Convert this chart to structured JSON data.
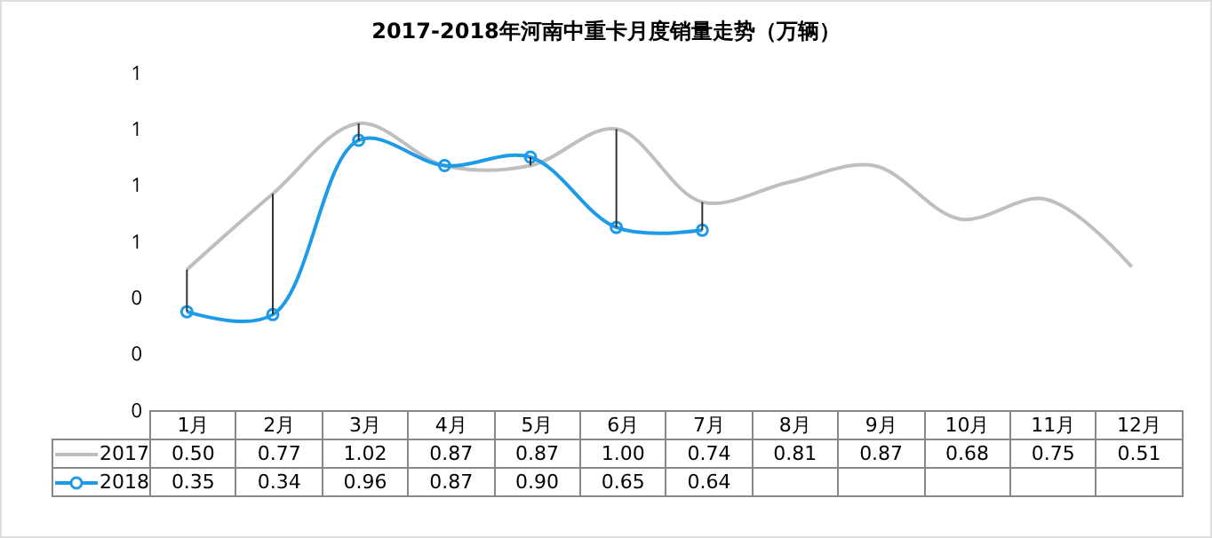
{
  "chart_data": {
    "type": "line",
    "title": "2017-2018年河南中重卡月度销量走势（万辆）",
    "categories": [
      "1月",
      "2月",
      "3月",
      "4月",
      "5月",
      "6月",
      "7月",
      "8月",
      "9月",
      "10月",
      "11月",
      "12月"
    ],
    "series": [
      {
        "name": "2017",
        "color": "#bfbfbf",
        "marker": "none",
        "values": [
          0.5,
          0.77,
          1.02,
          0.87,
          0.87,
          1.0,
          0.74,
          0.81,
          0.87,
          0.68,
          0.75,
          0.51
        ],
        "value_labels": [
          "0.50",
          "0.77",
          "1.02",
          "0.87",
          "0.87",
          "1.00",
          "0.74",
          "0.81",
          "0.87",
          "0.68",
          "0.75",
          "0.51"
        ]
      },
      {
        "name": "2018",
        "color": "#1e9be8",
        "marker": "circle",
        "values": [
          0.35,
          0.34,
          0.96,
          0.87,
          0.9,
          0.65,
          0.64,
          null,
          null,
          null,
          null,
          null
        ],
        "value_labels": [
          "0.35",
          "0.34",
          "0.96",
          "0.87",
          "0.90",
          "0.65",
          "0.64",
          null,
          null,
          null,
          null,
          null
        ]
      }
    ],
    "ylim": [
      0,
      1.2
    ],
    "yticks": [
      {
        "value": 0,
        "label": "0"
      },
      {
        "value": 0.2,
        "label": "0"
      },
      {
        "value": 0.4,
        "label": "0"
      },
      {
        "value": 0.6,
        "label": "1"
      },
      {
        "value": 0.8,
        "label": "1"
      },
      {
        "value": 1.0,
        "label": "1"
      },
      {
        "value": 1.2,
        "label": "1"
      }
    ],
    "grid": false,
    "legend": "bottom",
    "line_style": "solid"
  }
}
